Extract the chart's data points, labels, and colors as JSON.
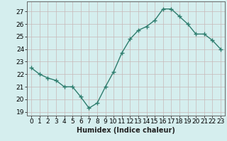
{
  "x": [
    0,
    1,
    2,
    3,
    4,
    5,
    6,
    7,
    8,
    9,
    10,
    11,
    12,
    13,
    14,
    15,
    16,
    17,
    18,
    19,
    20,
    21,
    22,
    23
  ],
  "y": [
    22.5,
    22.0,
    21.7,
    21.5,
    21.0,
    21.0,
    20.2,
    19.3,
    19.7,
    21.0,
    22.2,
    23.7,
    24.8,
    25.5,
    25.8,
    26.3,
    27.2,
    27.2,
    26.6,
    26.0,
    25.2,
    25.2,
    24.7,
    24.0
  ],
  "line_color": "#2e7d6e",
  "marker": "+",
  "marker_size": 4,
  "linewidth": 1.0,
  "xlabel": "Humidex (Indice chaleur)",
  "ylim": [
    18.7,
    27.8
  ],
  "yticks": [
    19,
    20,
    21,
    22,
    23,
    24,
    25,
    26,
    27
  ],
  "xticks": [
    0,
    1,
    2,
    3,
    4,
    5,
    6,
    7,
    8,
    9,
    10,
    11,
    12,
    13,
    14,
    15,
    16,
    17,
    18,
    19,
    20,
    21,
    22,
    23
  ],
  "bg_color": "#d5eeee",
  "grid_color_major": "#c8b8b8",
  "grid_color_minor": "#ddd0d0",
  "xlabel_fontsize": 7,
  "tick_fontsize": 6.5
}
